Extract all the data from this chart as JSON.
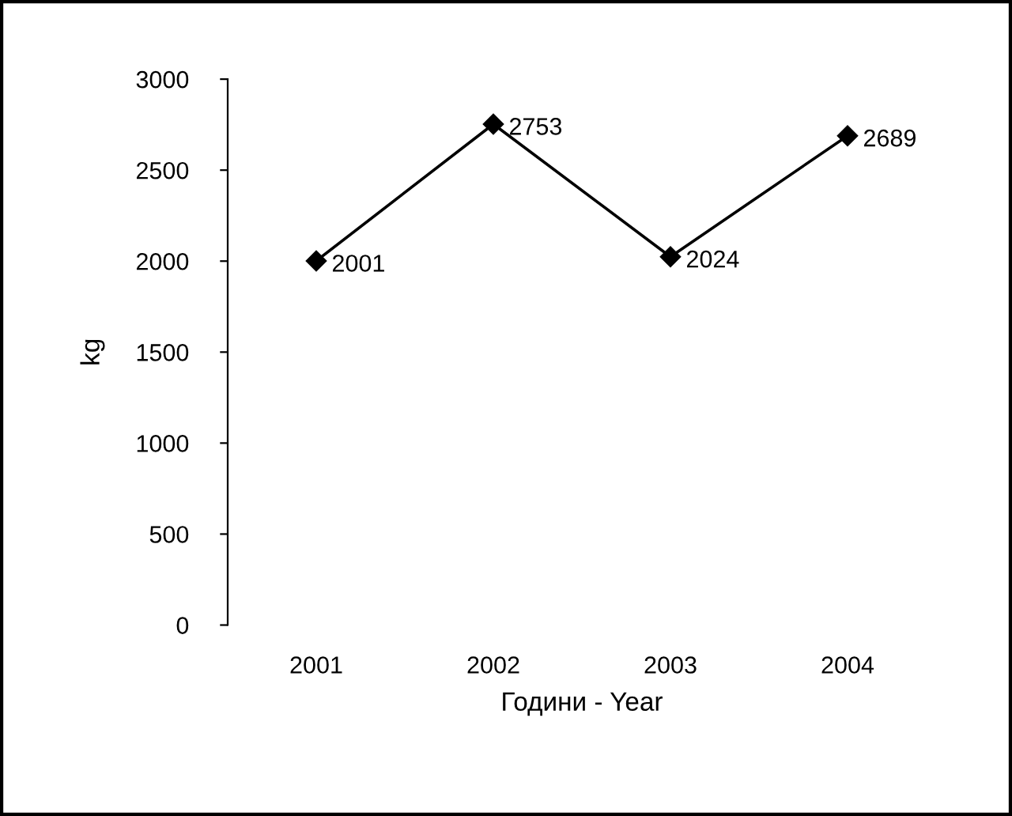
{
  "chart_data": {
    "type": "line",
    "xlabel": "Години - Year",
    "ylabel": "kg",
    "categories": [
      "2001",
      "2002",
      "2003",
      "2004"
    ],
    "series": [
      {
        "color": "#000000",
        "values": [
          2001,
          2753,
          2024,
          2689
        ]
      }
    ],
    "ylim": [
      0,
      3000
    ],
    "yticks": [
      0,
      500,
      1000,
      1500,
      2000,
      2500,
      3000
    ],
    "marker": "diamond",
    "line_style": "solid",
    "grid": false,
    "legend": false,
    "data_labels": true
  }
}
